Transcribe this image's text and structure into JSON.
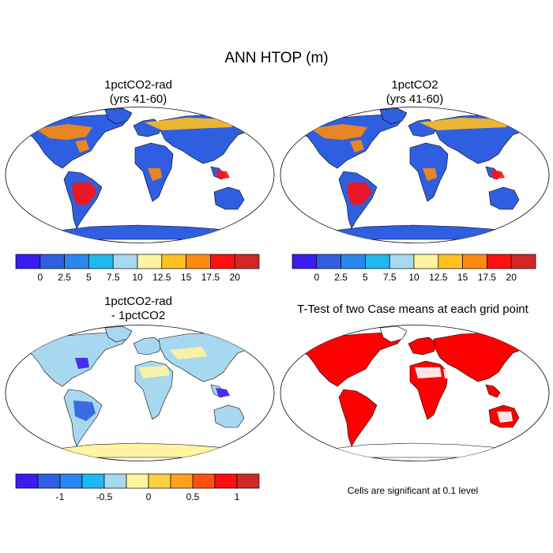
{
  "main_title": "ANN HTOP (m)",
  "panels": [
    {
      "id": "p1",
      "title1": "1pctCO2-rad",
      "title2": "(yrs 41-60)",
      "variant": "abs"
    },
    {
      "id": "p2",
      "title1": "1pctCO2",
      "title2": "(yrs 41-60)",
      "variant": "abs"
    },
    {
      "id": "p3",
      "title1": "1pctCO2-rad",
      "title2": "- 1pctCO2",
      "variant": "diff"
    },
    {
      "id": "p4",
      "title1": "T-Test of two Case means at each grid point",
      "title2": "",
      "variant": "ttest"
    }
  ],
  "colorbar_abs": {
    "colors": [
      "#3a1cf0",
      "#2f5fe0",
      "#2a86f0",
      "#20b8f0",
      "#a8d8f0",
      "#fff5a0",
      "#ffc020",
      "#ff8a10",
      "#ff1010",
      "#d02828"
    ],
    "labels": [
      "0",
      "2.5",
      "5",
      "7.5",
      "10",
      "12.5",
      "15",
      "17.5",
      "20"
    ]
  },
  "colorbar_diff": {
    "colors": [
      "#3a1cf0",
      "#2f5fe0",
      "#2a86f0",
      "#20b8f0",
      "#a8d8f0",
      "#fff5a0",
      "#ffd040",
      "#ffa020",
      "#ff5010",
      "#ff1010",
      "#d02828"
    ],
    "labels": [
      "-1",
      "-0.5",
      "0",
      "0.5",
      "1"
    ]
  },
  "ttest_note": "Cells are significant at 0.1 level",
  "colors": {
    "ocean": "#ffffff",
    "land_abs": "#2f5fe0",
    "land_diff": "#a8d8f0",
    "significant": "#ff0000",
    "antarctica_diff": "#fff5a0"
  }
}
